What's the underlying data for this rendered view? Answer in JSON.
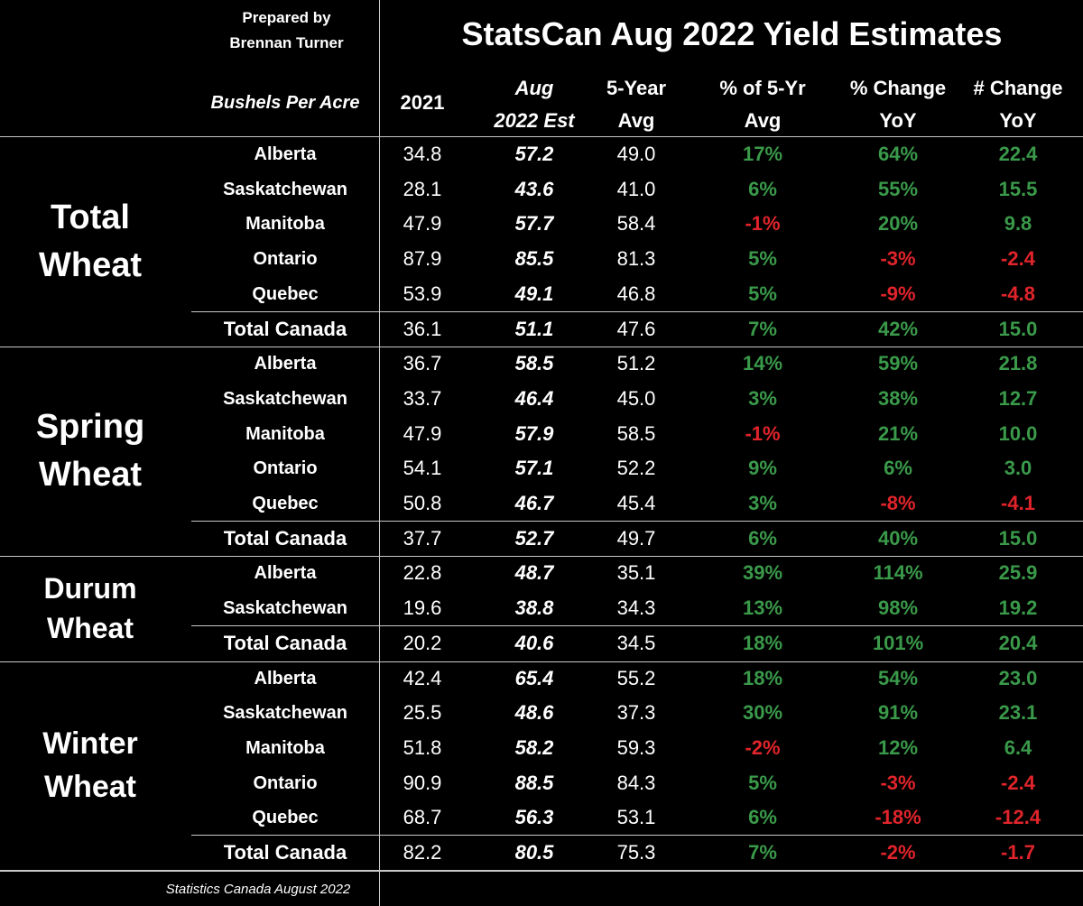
{
  "credit": {
    "line1": "Prepared by",
    "line2": "Brennan Turner"
  },
  "title": "StatsCan Aug 2022 Yield Estimates",
  "headers": {
    "units": "Bushels Per Acre",
    "y2021": "2021",
    "aug_l1": "Aug",
    "aug_l2": "2022 Est",
    "avg_l1": "5-Year",
    "avg_l2": "Avg",
    "pct_l1": "% of 5-Yr",
    "pct_l2": "Avg",
    "yoy_l1": "% Change",
    "yoy_l2": "YoY",
    "num_l1": "# Change",
    "num_l2": "YoY"
  },
  "colors": {
    "positive": "#3a9a4a",
    "negative": "#e0242b",
    "background": "#000000",
    "text": "#ffffff",
    "grid": "#c8c8c8"
  },
  "chart_data": {
    "type": "table",
    "title": "StatsCan Aug 2022 Yield Estimates",
    "columns": [
      "2021",
      "Aug 2022 Est",
      "5-Year Avg",
      "% of 5-Yr Avg",
      "% Change YoY",
      "# Change YoY"
    ],
    "sections": [
      {
        "name_l1": "Total",
        "name_l2": "Wheat",
        "rows": [
          {
            "province": "Alberta",
            "y2021": "34.8",
            "aug": "57.2",
            "avg": "49.0",
            "pct": "17%",
            "yoy": "64%",
            "num": "22.4"
          },
          {
            "province": "Saskatchewan",
            "y2021": "28.1",
            "aug": "43.6",
            "avg": "41.0",
            "pct": "6%",
            "yoy": "55%",
            "num": "15.5"
          },
          {
            "province": "Manitoba",
            "y2021": "47.9",
            "aug": "57.7",
            "avg": "58.4",
            "pct": "-1%",
            "yoy": "20%",
            "num": "9.8"
          },
          {
            "province": "Ontario",
            "y2021": "87.9",
            "aug": "85.5",
            "avg": "81.3",
            "pct": "5%",
            "yoy": "-3%",
            "num": "-2.4"
          },
          {
            "province": "Quebec",
            "y2021": "53.9",
            "aug": "49.1",
            "avg": "46.8",
            "pct": "5%",
            "yoy": "-9%",
            "num": "-4.8"
          },
          {
            "province": "Total Canada",
            "y2021": "36.1",
            "aug": "51.1",
            "avg": "47.6",
            "pct": "7%",
            "yoy": "42%",
            "num": "15.0",
            "total": true
          }
        ]
      },
      {
        "name_l1": "Spring",
        "name_l2": "Wheat",
        "rows": [
          {
            "province": "Alberta",
            "y2021": "36.7",
            "aug": "58.5",
            "avg": "51.2",
            "pct": "14%",
            "yoy": "59%",
            "num": "21.8"
          },
          {
            "province": "Saskatchewan",
            "y2021": "33.7",
            "aug": "46.4",
            "avg": "45.0",
            "pct": "3%",
            "yoy": "38%",
            "num": "12.7"
          },
          {
            "province": "Manitoba",
            "y2021": "47.9",
            "aug": "57.9",
            "avg": "58.5",
            "pct": "-1%",
            "yoy": "21%",
            "num": "10.0"
          },
          {
            "province": "Ontario",
            "y2021": "54.1",
            "aug": "57.1",
            "avg": "52.2",
            "pct": "9%",
            "yoy": "6%",
            "num": "3.0"
          },
          {
            "province": "Quebec",
            "y2021": "50.8",
            "aug": "46.7",
            "avg": "45.4",
            "pct": "3%",
            "yoy": "-8%",
            "num": "-4.1"
          },
          {
            "province": "Total Canada",
            "y2021": "37.7",
            "aug": "52.7",
            "avg": "49.7",
            "pct": "6%",
            "yoy": "40%",
            "num": "15.0",
            "total": true
          }
        ]
      },
      {
        "name_l1": "Durum",
        "name_l2": "Wheat",
        "rows": [
          {
            "province": "Alberta",
            "y2021": "22.8",
            "aug": "48.7",
            "avg": "35.1",
            "pct": "39%",
            "yoy": "114%",
            "num": "25.9"
          },
          {
            "province": "Saskatchewan",
            "y2021": "19.6",
            "aug": "38.8",
            "avg": "34.3",
            "pct": "13%",
            "yoy": "98%",
            "num": "19.2"
          },
          {
            "province": "Total Canada",
            "y2021": "20.2",
            "aug": "40.6",
            "avg": "34.5",
            "pct": "18%",
            "yoy": "101%",
            "num": "20.4",
            "total": true
          }
        ]
      },
      {
        "name_l1": "Winter",
        "name_l2": "Wheat",
        "rows": [
          {
            "province": "Alberta",
            "y2021": "42.4",
            "aug": "65.4",
            "avg": "55.2",
            "pct": "18%",
            "yoy": "54%",
            "num": "23.0"
          },
          {
            "province": "Saskatchewan",
            "y2021": "25.5",
            "aug": "48.6",
            "avg": "37.3",
            "pct": "30%",
            "yoy": "91%",
            "num": "23.1"
          },
          {
            "province": "Manitoba",
            "y2021": "51.8",
            "aug": "58.2",
            "avg": "59.3",
            "pct": "-2%",
            "yoy": "12%",
            "num": "6.4"
          },
          {
            "province": "Ontario",
            "y2021": "90.9",
            "aug": "88.5",
            "avg": "84.3",
            "pct": "5%",
            "yoy": "-3%",
            "num": "-2.4"
          },
          {
            "province": "Quebec",
            "y2021": "68.7",
            "aug": "56.3",
            "avg": "53.1",
            "pct": "6%",
            "yoy": "-18%",
            "num": "-12.4"
          },
          {
            "province": "Total Canada",
            "y2021": "82.2",
            "aug": "80.5",
            "avg": "75.3",
            "pct": "7%",
            "yoy": "-2%",
            "num": "-1.7",
            "total": true
          }
        ]
      }
    ]
  },
  "footer": "Statistics Canada August 2022"
}
